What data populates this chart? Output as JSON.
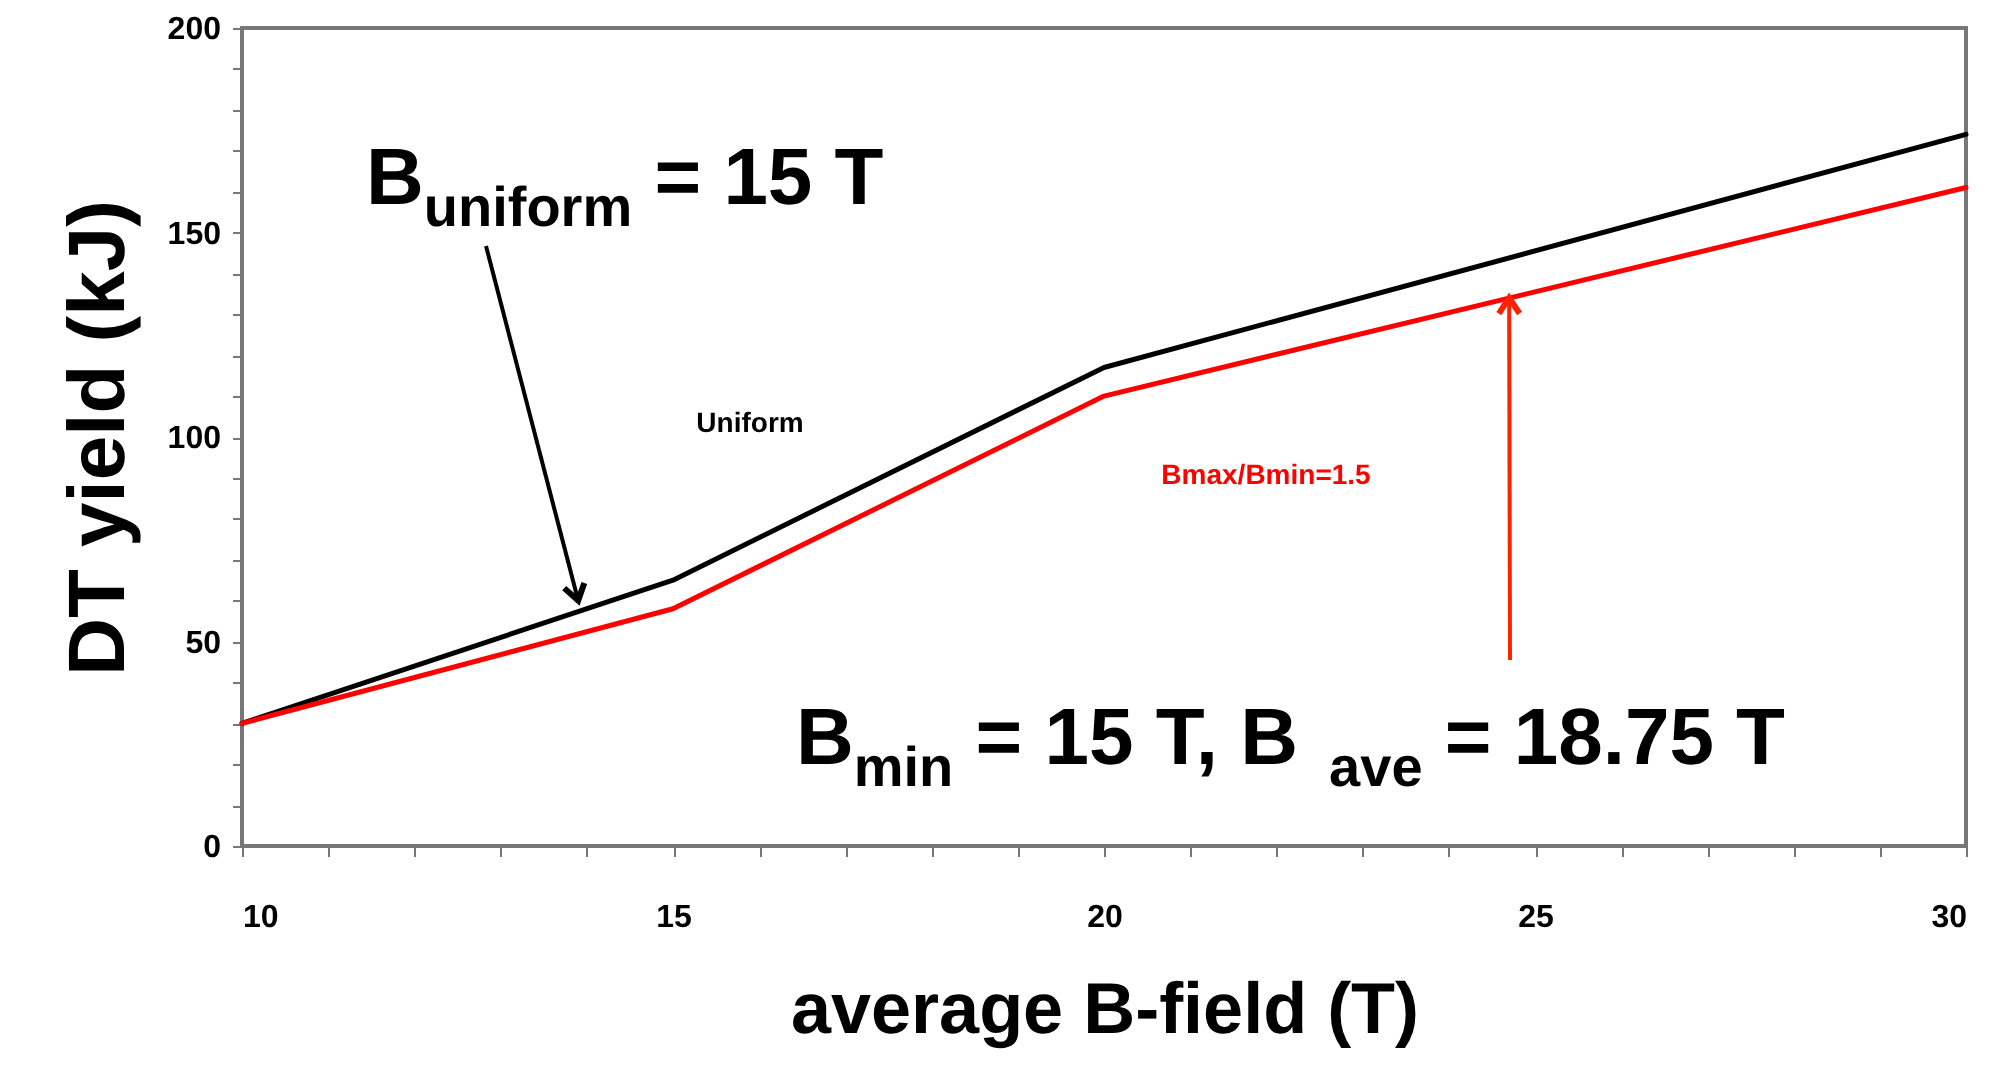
{
  "chart_data": {
    "type": "line",
    "xlabel": "average B-field (T)",
    "ylabel": "DT yield (kJ)",
    "x": [
      10,
      15,
      20,
      30
    ],
    "series": [
      {
        "name": "Uniform",
        "color": "#000000",
        "values": [
          30,
          65,
          117,
          174
        ]
      },
      {
        "name": "Bmax/Bmin=1.5",
        "color": "#ff0000",
        "values": [
          30,
          58,
          110,
          161
        ]
      }
    ],
    "xlim": [
      10,
      30
    ],
    "ylim": [
      0,
      200
    ],
    "xticks": [
      10,
      {
        "value": 11,
        "label": null
      },
      {
        "value": 12,
        "label": null
      },
      {
        "value": 13,
        "label": null
      },
      {
        "value": 14,
        "label": null
      },
      15,
      {
        "value": 16,
        "label": null
      },
      {
        "value": 17,
        "label": null
      },
      {
        "value": 18,
        "label": null
      },
      {
        "value": 19,
        "label": null
      },
      20,
      {
        "value": 21,
        "label": null
      },
      {
        "value": 22,
        "label": null
      },
      {
        "value": 23,
        "label": null
      },
      {
        "value": 24,
        "label": null
      },
      25,
      {
        "value": 26,
        "label": null
      },
      {
        "value": 27,
        "label": null
      },
      {
        "value": 28,
        "label": null
      },
      {
        "value": 29,
        "label": null
      },
      30
    ],
    "yticks": [
      0,
      {
        "value": 10,
        "label": null
      },
      {
        "value": 20,
        "label": null
      },
      {
        "value": 30,
        "label": null
      },
      {
        "value": 40,
        "label": null
      },
      50,
      {
        "value": 60,
        "label": null
      },
      {
        "value": 70,
        "label": null
      },
      {
        "value": 80,
        "label": null
      },
      {
        "value": 90,
        "label": null
      },
      100,
      {
        "value": 110,
        "label": null
      },
      {
        "value": 120,
        "label": null
      },
      {
        "value": 130,
        "label": null
      },
      {
        "value": 140,
        "label": null
      },
      150,
      {
        "value": 160,
        "label": null
      },
      {
        "value": 170,
        "label": null
      },
      {
        "value": 180,
        "label": null
      },
      {
        "value": 190,
        "label": null
      },
      200
    ],
    "grid": false,
    "legend": false,
    "annotations": [
      {
        "text": "B$_{uniform}$ = 15 T",
        "x": 13.9,
        "y": 60
      },
      {
        "text": "B$_{min}$ = 15 T,  B$_{ave}$ = 18.75  T",
        "x": 24.7,
        "y": 134
      }
    ]
  }
}
